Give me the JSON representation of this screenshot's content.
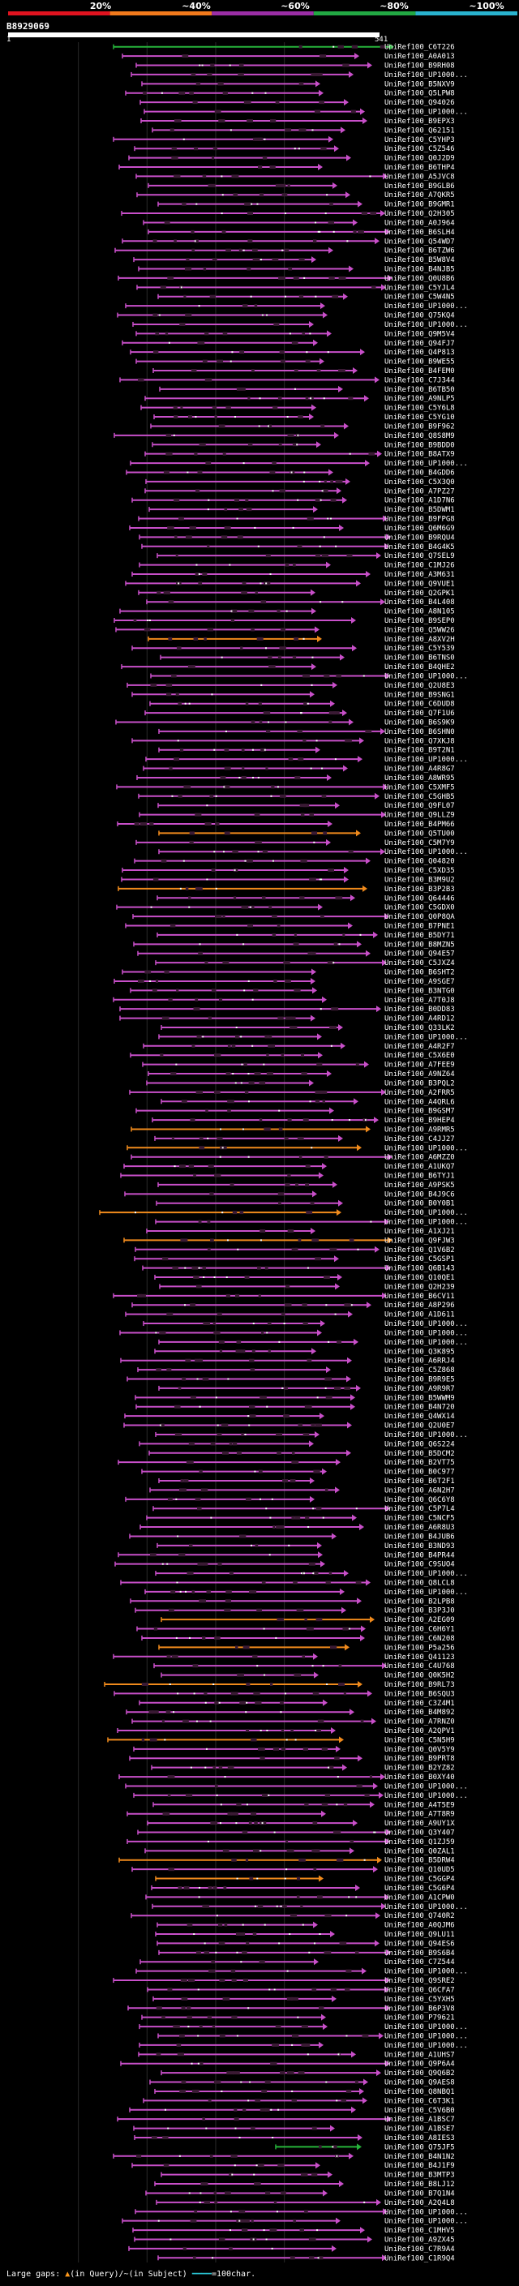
{
  "scale": {
    "ticks": [
      "20%",
      "~40%",
      "~60%",
      "~80%",
      "~100%"
    ],
    "colors": [
      "#e0131f",
      "#f27a1c",
      "#9b2ea6",
      "#22a843",
      "#29b3cf"
    ]
  },
  "query": {
    "id": "B8929069",
    "start": "1",
    "end": "541"
  },
  "colors": {
    "hit": "#c84fc9",
    "hit_alt": "#f08a1c",
    "hit_green": "#26b33a",
    "mismatch": "#3a1a34"
  },
  "labels": [
    "UniRef100_C6T226",
    "UniRef100_A0A013",
    "UniRef100_B9RH08",
    "UniRef100_UP1000...",
    "UniRef100_B5NXV9",
    "UniRef100_Q5LPW8",
    "UniRef100_Q94026",
    "UniRef100_UP1000...",
    "UniRef100_B9EPX3",
    "UniRef100_Q62151",
    "UniRef100_C5YHP3",
    "UniRef100_C5Z546",
    "UniRef100_Q0J2D9",
    "UniRef100_B6THP4",
    "UniRef100_A5JVC8",
    "UniRef100_B9GLB6",
    "UniRef100_A7QKR5",
    "UniRef100_B9GMR1",
    "UniRef100_Q2H305",
    "UniRef100_A0J964",
    "UniRef100_B6SLH4",
    "UniRef100_Q54WD7",
    "UniRef100_B6TZW6",
    "UniRef100_B5W8V4",
    "UniRef100_B4NJB5",
    "UniRef100_Q0U8B6",
    "UniRef100_C5YJL4",
    "UniRef100_C5W4N5",
    "UniRef100_UP1000...",
    "UniRef100_Q75KQ4",
    "UniRef100_UP1000...",
    "UniRef100_Q9M5V4",
    "UniRef100_Q94FJ7",
    "UniRef100_Q4P813",
    "UniRef100_B9WE55",
    "UniRef100_B4FEM0",
    "UniRef100_C7J344",
    "UniRef100_B6TB50",
    "UniRef100_A9NLP5",
    "UniRef100_C5Y6L8",
    "UniRef100_C5YG10",
    "UniRef100_B9F962",
    "UniRef100_Q8S8M9",
    "UniRef100_B9BDD0",
    "UniRef100_B8ATX9",
    "UniRef100_UP1000...",
    "UniRef100_B4GDD6",
    "UniRef100_C5X3Q0",
    "UniRef100_A7PZ27",
    "UniRef100_A1D7N6",
    "UniRef100_B5DWM1",
    "UniRef100_B9FPG8",
    "UniRef100_Q6M6G9",
    "UniRef100_B9RQU4",
    "UniRef100_B4G4K5",
    "UniRef100_Q7SEL9",
    "UniRef100_C1MJ26",
    "UniRef100_A3M631",
    "UniRef100_Q9VUE1",
    "UniRef100_Q2GPK1",
    "UniRef100_B4L408",
    "UniRef100_A8N105",
    "UniRef100_B9SEP0",
    "UniRef100_Q5WW26",
    "UniRef100_A8XV2H",
    "UniRef100_C5Y539",
    "UniRef100_B6TNS0",
    "UniRef100_B4QHE2",
    "UniRef100_UP1000...",
    "UniRef100_Q2U8E3",
    "UniRef100_B9SNG1",
    "UniRef100_C6DUD8",
    "UniRef100_Q7F1U6",
    "UniRef100_B6S9K9",
    "UniRef100_B6SHN0",
    "UniRef100_Q7XKJ8",
    "UniRef100_B9T2N1",
    "UniRef100_UP1000...",
    "UniRef100_A4R8G7",
    "UniRef100_A8WR95",
    "UniRef100_C5XMF5",
    "UniRef100_C5GHB5",
    "UniRef100_Q9FL07",
    "UniRef100_Q9LLZ9",
    "UniRef100_B4PM66",
    "UniRef100_Q5TU00",
    "UniRef100_C5M7Y9",
    "UniRef100_UP1000...",
    "UniRef100_Q04820",
    "UniRef100_C5XD35",
    "UniRef100_B3M9U2",
    "UniRef100_B3P2B3",
    "UniRef100_Q64446",
    "UniRef100_C5GDX0",
    "UniRef100_Q0P8QA",
    "UniRef100_B7PNE1",
    "UniRef100_B5DY71",
    "UniRef100_B8MZN5",
    "UniRef100_Q94E57",
    "UniRef100_C5JXZ4",
    "UniRef100_B6SHT2",
    "UniRef100_A9SGE7",
    "UniRef100_B3NTG0",
    "UniRef100_A7T0J8",
    "UniRef100_B0DD83",
    "UniRef100_A4RD12",
    "UniRef100_Q33LK2",
    "UniRef100_UP1000...",
    "UniRef100_A4R2F7",
    "UniRef100_C5X6E0",
    "UniRef100_A7FEE9",
    "UniRef100_A9NZ64",
    "UniRef100_B3PQL2",
    "UniRef100_A2FRR5",
    "UniRef100_A4QRL6",
    "UniRef100_B9GSM7",
    "UniRef100_B9HEP4",
    "UniRef100_A9RMR5",
    "UniRef100_C4JJ27",
    "UniRef100_UP1000...",
    "UniRef100_A6MZZ0",
    "UniRef100_A1UKQ7",
    "UniRef100_B6TYJ1",
    "UniRef100_A9PSK5",
    "UniRef100_B4J9C6",
    "UniRef100_B0Y0B1",
    "UniRef100_UP1000...",
    "UniRef100_UP1000...",
    "UniRef100_A1XJ21",
    "UniRef100_Q9FJW3",
    "UniRef100_Q1V6B2",
    "UniRef100_C5GSP1",
    "UniRef100_Q6B143",
    "UniRef100_Q10QE1",
    "UniRef100_Q2H239",
    "UniRef100_B6CV11",
    "UniRef100_A8P296",
    "UniRef100_A1D611",
    "UniRef100_UP1000...",
    "UniRef100_UP1000...",
    "UniRef100_UP1000...",
    "UniRef100_Q3K895",
    "UniRef100_A6RRJ4",
    "UniRef100_C5Z868",
    "UniRef100_B9R9E5",
    "UniRef100_A9R9R7",
    "UniRef100_B5WWM9",
    "UniRef100_B4N720",
    "UniRef100_Q4WX14",
    "UniRef100_Q2U0E7",
    "UniRef100_UP1000...",
    "UniRef100_Q6S224",
    "UniRef100_B5DCM2",
    "UniRef100_B2VT75",
    "UniRef100_B0C977",
    "UniRef100_B6T2F1",
    "UniRef100_A6N2H7",
    "UniRef100_Q6C6Y8",
    "UniRef100_C5P7L4",
    "UniRef100_C5NCF5",
    "UniRef100_A6R8U3",
    "UniRef100_B4JUB6",
    "UniRef100_B3ND93",
    "UniRef100_B4PR44",
    "UniRef100_C9SUO4",
    "UniRef100_UP1000...",
    "UniRef100_Q8LCL8",
    "UniRef100_UP1000...",
    "UniRef100_B2LPB8",
    "UniRef100_B3P3J0",
    "UniRef100_A2EG09",
    "UniRef100_C6H6Y1",
    "UniRef100_C6N208",
    "UniRef100_P5a256",
    "UniRef100_Q41123",
    "UniRef100_C4U768",
    "UniRef100_Q0K5H2",
    "UniRef100_B9RL73",
    "UniRef100_B6SQU3",
    "UniRef100_C3Z4M1",
    "UniRef100_B4M892",
    "UniRef100_A7RNZ0",
    "UniRef100_A2QPV1",
    "UniRef100_C5N5H9",
    "UniRef100_Q0V5Y9",
    "UniRef100_B9PRT8",
    "UniRef100_B2YZ82",
    "UniRef100_B0XY40",
    "UniRef100_UP1000...",
    "UniRef100_UP1000...",
    "UniRef100_A4T5E9",
    "UniRef100_A7T8R9",
    "UniRef100_A9UY1X",
    "UniRef100_Q3Y407",
    "UniRef100_Q1ZJ59",
    "UniRef100_Q0ZAL1",
    "UniRef100_B5DRW4",
    "UniRef100_Q10UD5",
    "UniRef100_C5GGP4",
    "UniRef100_C5G6P4",
    "UniRef100_A1CPW0",
    "UniRef100_UP1000...",
    "UniRef100_Q740R2",
    "UniRef100_A0QJM6",
    "UniRef100_Q9LU11",
    "UniRef100_Q94ES6",
    "UniRef100_B9S6B4",
    "UniRef100_C7Z544",
    "UniRef100_UP1000...",
    "UniRef100_Q9SRE2",
    "UniRef100_Q6CFA7",
    "UniRef100_C5YXH5",
    "UniRef100_B6P3V8",
    "UniRef100_P79621",
    "UniRef100_UP1000...",
    "UniRef100_UP1000...",
    "UniRef100_UP1000...",
    "UniRef100_A1UHS7",
    "UniRef100_Q9P6A4",
    "UniRef100_Q9Q6B2",
    "UniRef100_Q9AES8",
    "UniRef100_Q8NBQ1",
    "UniRef100_C6T3K1",
    "UniRef100_C5V6B0",
    "UniRef100_A1BSC7",
    "UniRef100_A1BSE7",
    "UniRef100_A8IES3",
    "UniRef100_Q75JF5",
    "UniRef100_B4N1N2",
    "UniRef100_B4J1F9",
    "UniRef100_B3MTP3",
    "UniRef100_B8LJ12",
    "UniRef100_B7Q1N4",
    "UniRef100_A2Q4L8",
    "UniRef100_UP1000...",
    "UniRef100_UP1000...",
    "UniRef100_C1MHV5",
    "UniRef100_A9ZX45",
    "UniRef100_C7R9A4",
    "UniRef100_C1R9Q4"
  ],
  "footer": {
    "prefix": "Large gaps: ",
    "query_sym": "▲",
    "query_text": "(in Query)",
    "sep": "/",
    "subject_sym": "~",
    "subject_text": "(in Subject)",
    "scale_text": "=100char."
  }
}
